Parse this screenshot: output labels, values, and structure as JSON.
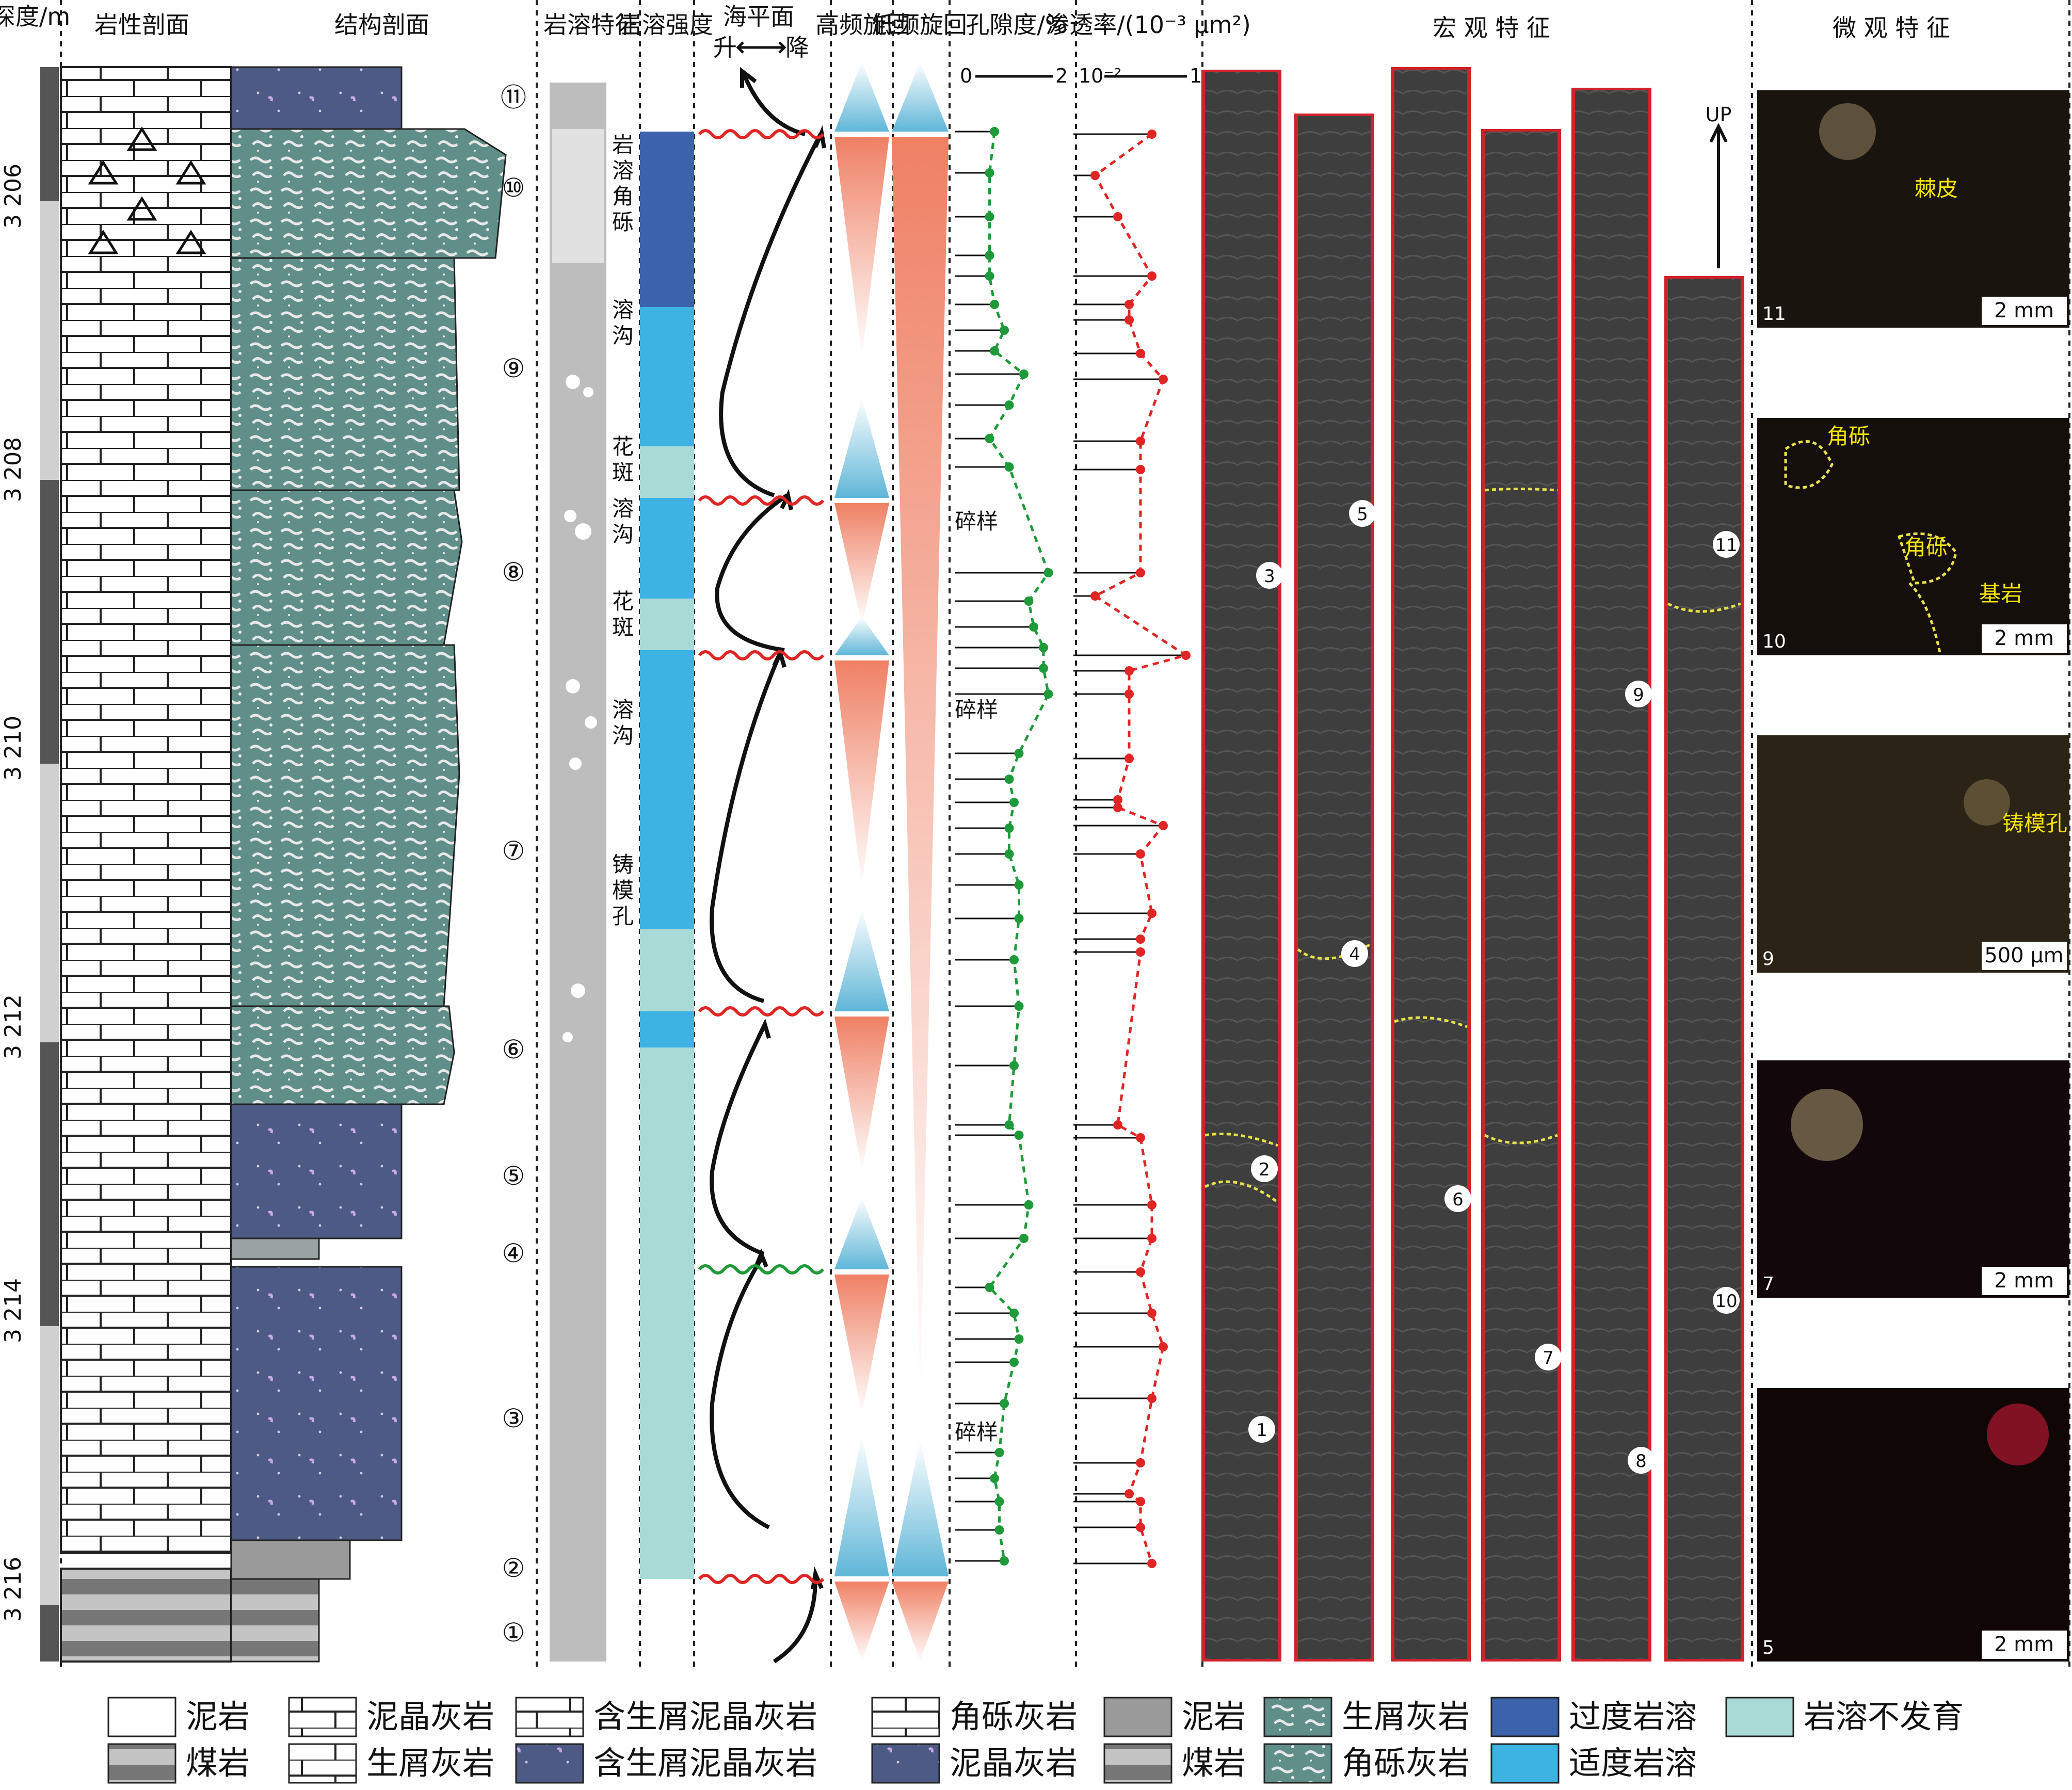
{
  "headers": {
    "depth": "深度/m",
    "lithology": "岩性剖面",
    "structure": "结构剖面",
    "karst_feature": "岩溶特征",
    "karst_intensity": "岩溶强度",
    "sea_level": "海平面",
    "sea_level_rise": "升",
    "sea_level_fall": "降",
    "high_freq": "高频旋回",
    "low_freq": "低频旋回",
    "porosity": "孔隙度/%",
    "porosity_min": "0",
    "porosity_max": "2",
    "permeability": "渗透率/(10⁻³ μm²)",
    "perm_min": "10⁻²",
    "perm_max": "1",
    "macro": "宏 观 特 征",
    "micro": "微 观 特 征"
  },
  "depth_ticks": [
    "3 206",
    "3 208",
    "3 210",
    "3 212",
    "3 214",
    "3 216"
  ],
  "sample_markers": [
    "①",
    "②",
    "③",
    "④",
    "⑤",
    "⑥",
    "⑦",
    "⑧",
    "⑨",
    "⑩",
    "⑪"
  ],
  "karst_labels": [
    "岩溶角砾",
    "溶沟",
    "花斑",
    "溶沟",
    "花斑",
    "溶沟",
    "铸模孔"
  ],
  "rubble_labels": [
    "碎样",
    "碎样",
    "碎样"
  ],
  "core_markers": [
    "1",
    "2",
    "3",
    "4",
    "5",
    "6",
    "7",
    "8",
    "9",
    "10",
    "11"
  ],
  "up_label": "UP",
  "micro_panels": [
    {
      "num": "11",
      "scale": "2 mm",
      "annot": [
        "棘皮"
      ]
    },
    {
      "num": "10",
      "scale": "2 mm",
      "annot": [
        "角砾",
        "角砾",
        "基岩"
      ]
    },
    {
      "num": "9",
      "scale": "500 μm",
      "annot": [
        "铸模孔"
      ]
    },
    {
      "num": "7",
      "scale": "2 mm",
      "annot": []
    },
    {
      "num": "5",
      "scale": "2 mm",
      "annot": []
    }
  ],
  "legend": [
    {
      "label": "泥岩",
      "kind": "mud-lith"
    },
    {
      "label": "泥晶灰岩",
      "kind": "micrite-lith"
    },
    {
      "label": "含生屑泥晶灰岩",
      "kind": "bio-micrite-lith"
    },
    {
      "label": "角砾灰岩",
      "kind": "breccia-lith"
    },
    {
      "label": "泥岩",
      "kind": "mud-struct"
    },
    {
      "label": "生屑灰岩",
      "kind": "bio-struct"
    },
    {
      "label": "过度岩溶",
      "kind": "excess"
    },
    {
      "label": "岩溶不发育",
      "kind": "none"
    },
    {
      "label": "煤岩",
      "kind": "coal-lith"
    },
    {
      "label": "生屑灰岩",
      "kind": "bio-lith"
    },
    {
      "label": "含生屑泥晶灰岩",
      "kind": "bio-micrite-struct"
    },
    {
      "label": "泥晶灰岩",
      "kind": "micrite-struct"
    },
    {
      "label": "煤岩",
      "kind": "coal-struct"
    },
    {
      "label": "角砾灰岩",
      "kind": "breccia-struct"
    },
    {
      "label": "适度岩溶",
      "kind": "moderate"
    }
  ],
  "colors": {
    "excessive_karst": "#3a63ab",
    "moderate_karst": "#3cb3e3",
    "no_karst": "#a9dad5",
    "bioclastic": "#5f8f88",
    "micrite_struct": "#4d5a85",
    "porosity": "#1f9a3a",
    "permeability": "#e02525"
  },
  "chart_data": {
    "type": "line",
    "series": [
      {
        "name": "孔隙度",
        "unit": "%",
        "points": [
          [
            0.6,
            255
          ],
          [
            0.5,
            335
          ],
          [
            0.5,
            420
          ],
          [
            0.5,
            495
          ],
          [
            0.5,
            535
          ],
          [
            0.6,
            590
          ],
          [
            0.8,
            640
          ],
          [
            0.6,
            680
          ],
          [
            1.2,
            725
          ],
          [
            0.9,
            785
          ],
          [
            0.5,
            850
          ],
          [
            0.9,
            905
          ],
          [
            1.7,
            1110
          ],
          [
            1.3,
            1165
          ],
          [
            1.4,
            1215
          ],
          [
            1.6,
            1255
          ],
          [
            1.6,
            1295
          ],
          [
            1.7,
            1345
          ],
          [
            1.1,
            1460
          ],
          [
            0.9,
            1510
          ],
          [
            1.0,
            1555
          ],
          [
            0.9,
            1605
          ],
          [
            0.9,
            1655
          ],
          [
            1.1,
            1715
          ],
          [
            1.1,
            1780
          ],
          [
            1.0,
            1860
          ],
          [
            1.1,
            1950
          ],
          [
            1.0,
            2065
          ],
          [
            0.9,
            2180
          ],
          [
            1.1,
            2200
          ],
          [
            1.3,
            2335
          ],
          [
            1.2,
            2400
          ],
          [
            0.5,
            2495
          ],
          [
            1.0,
            2545
          ],
          [
            1.1,
            2595
          ],
          [
            1.0,
            2640
          ],
          [
            0.8,
            2720
          ],
          [
            0.7,
            2815
          ],
          [
            0.6,
            2865
          ],
          [
            0.7,
            2910
          ],
          [
            0.7,
            2965
          ],
          [
            0.8,
            3025
          ]
        ]
      },
      {
        "name": "渗透率",
        "unit": "10⁻³ μm²",
        "points": [
          [
            0.6,
            260
          ],
          [
            0.1,
            340
          ],
          [
            0.3,
            420
          ],
          [
            0.6,
            535
          ],
          [
            0.4,
            590
          ],
          [
            0.4,
            620
          ],
          [
            0.5,
            685
          ],
          [
            0.7,
            735
          ],
          [
            0.5,
            855
          ],
          [
            0.5,
            910
          ],
          [
            0.5,
            1110
          ],
          [
            0.1,
            1155
          ],
          [
            0.9,
            1270
          ],
          [
            0.4,
            1300
          ],
          [
            0.4,
            1345
          ],
          [
            0.4,
            1470
          ],
          [
            0.3,
            1550
          ],
          [
            0.3,
            1565
          ],
          [
            0.7,
            1600
          ],
          [
            0.5,
            1655
          ],
          [
            0.6,
            1770
          ],
          [
            0.5,
            1820
          ],
          [
            0.5,
            1845
          ],
          [
            0.3,
            2180
          ],
          [
            0.5,
            2205
          ],
          [
            0.6,
            2335
          ],
          [
            0.6,
            2400
          ],
          [
            0.5,
            2465
          ],
          [
            0.6,
            2545
          ],
          [
            0.7,
            2610
          ],
          [
            0.6,
            2710
          ],
          [
            0.5,
            2835
          ],
          [
            0.4,
            2895
          ],
          [
            0.5,
            2910
          ],
          [
            0.5,
            2960
          ],
          [
            0.6,
            3030
          ]
        ]
      }
    ],
    "ylim": [
      3205,
      3216.5
    ]
  }
}
